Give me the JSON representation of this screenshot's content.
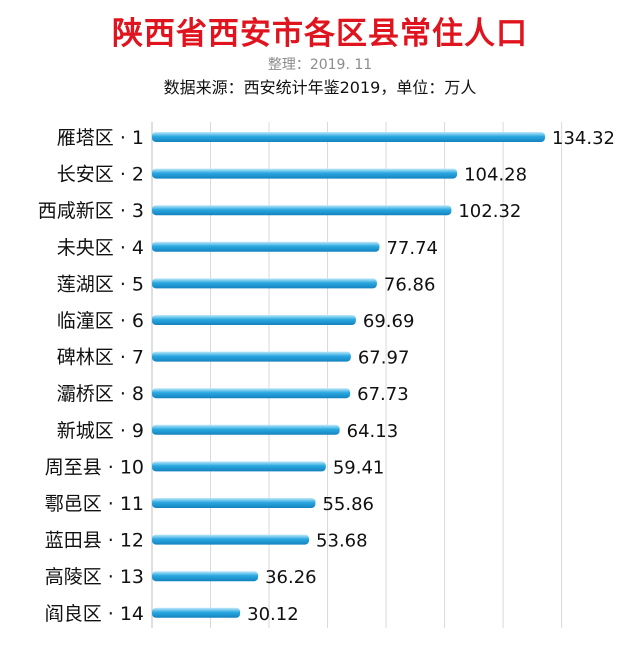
{
  "header": {
    "title": "陕西省西安市各区县常住人口",
    "note": "整理：2019. 11",
    "source": "数据来源：西安统计年鉴2019，单位：万人"
  },
  "colors": {
    "title": "#e0141e",
    "bar_light": "#bfe9fb",
    "bar_main": "#2aa8e0",
    "bar_dark": "#1482bf",
    "grid": "#d9d9d9",
    "axis": "#bfbfbf"
  },
  "chart_data": {
    "type": "bar",
    "orientation": "horizontal",
    "title": "陕西省西安市各区县常住人口",
    "xlim": [
      0,
      140
    ],
    "grid": true,
    "categories": [
      "雁塔区 · 1",
      "长安区 · 2",
      "西咸新区 · 3",
      "未央区 · 4",
      "莲湖区 · 5",
      "临潼区 · 6",
      "碑林区 · 7",
      "灞桥区 · 8",
      "新城区 · 9",
      "周至县 · 10",
      "鄠邑区 · 11",
      "蓝田县 · 12",
      "高陵区 · 13",
      "阎良区 · 14"
    ],
    "values": [
      134.32,
      104.28,
      102.32,
      77.74,
      76.86,
      69.69,
      67.97,
      67.73,
      64.13,
      59.41,
      55.86,
      53.68,
      36.26,
      30.12
    ],
    "value_labels": [
      "134.32",
      "104.28",
      "102.32",
      "77.74",
      "76.86",
      "69.69",
      "67.97",
      "67.73",
      "64.13",
      "59.41",
      "55.86",
      "53.68",
      "36.26",
      "30.12"
    ]
  }
}
